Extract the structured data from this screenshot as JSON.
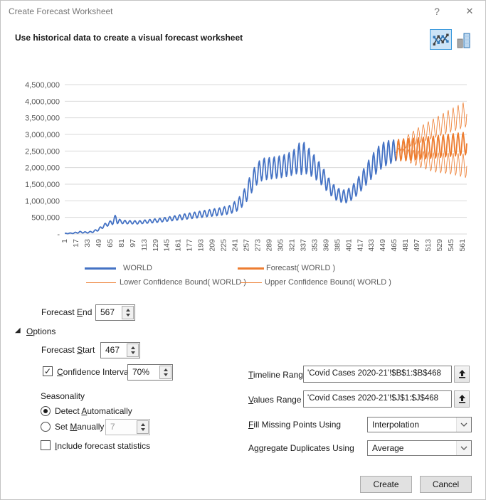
{
  "window": {
    "title": "Create Forecast Worksheet",
    "help_glyph": "?",
    "close_glyph": "✕"
  },
  "header": {
    "subtitle": "Use historical data to create a visual forecast worksheet",
    "chart_type_selected": "line"
  },
  "chart_data": {
    "type": "line",
    "title": "",
    "xlabel": "",
    "ylabel": "",
    "xlim": [
      1,
      567
    ],
    "ylim": [
      0,
      4500000
    ],
    "grid": true,
    "grid_color": "#d9d9d9",
    "tick_color": "#595959",
    "legend_position": "bottom",
    "seasonality_period": 7,
    "x_ticks": [
      1,
      17,
      33,
      49,
      65,
      81,
      97,
      113,
      129,
      145,
      161,
      177,
      193,
      209,
      225,
      241,
      257,
      273,
      289,
      305,
      321,
      337,
      353,
      369,
      385,
      401,
      417,
      433,
      449,
      465,
      481,
      497,
      513,
      529,
      545,
      561
    ],
    "y_ticks": [
      {
        "v": 0,
        "label": "-"
      },
      {
        "v": 500000,
        "label": "500,000"
      },
      {
        "v": 1000000,
        "label": "1,000,000"
      },
      {
        "v": 1500000,
        "label": "1,500,000"
      },
      {
        "v": 2000000,
        "label": "2,000,000"
      },
      {
        "v": 2500000,
        "label": "2,500,000"
      },
      {
        "v": 3000000,
        "label": "3,000,000"
      },
      {
        "v": 3500000,
        "label": "3,500,000"
      },
      {
        "v": 4000000,
        "label": "4,000,000"
      },
      {
        "v": 4500000,
        "label": "4,500,000"
      }
    ],
    "series": [
      {
        "name": "WORLD",
        "color": "#4472C4",
        "width": 1.8,
        "swatch_h": 3,
        "z": 4,
        "knots": [
          [
            1,
            15000,
            8000
          ],
          [
            12,
            25000,
            12000
          ],
          [
            22,
            55000,
            25000
          ],
          [
            33,
            45000,
            18000
          ],
          [
            41,
            70000,
            25000
          ],
          [
            49,
            140000,
            40000
          ],
          [
            57,
            260000,
            55000
          ],
          [
            65,
            330000,
            65000
          ],
          [
            73,
            450000,
            140000
          ],
          [
            79,
            370000,
            60000
          ],
          [
            89,
            355000,
            50000
          ],
          [
            105,
            350000,
            50000
          ],
          [
            121,
            385000,
            55000
          ],
          [
            137,
            420000,
            60000
          ],
          [
            153,
            470000,
            70000
          ],
          [
            169,
            520000,
            85000
          ],
          [
            185,
            570000,
            95000
          ],
          [
            201,
            620000,
            105000
          ],
          [
            217,
            665000,
            115000
          ],
          [
            233,
            730000,
            130000
          ],
          [
            245,
            880000,
            180000
          ],
          [
            255,
            1150000,
            250000
          ],
          [
            263,
            1500000,
            300000
          ],
          [
            271,
            1800000,
            330000
          ],
          [
            279,
            1950000,
            340000
          ],
          [
            291,
            1980000,
            330000
          ],
          [
            303,
            2020000,
            340000
          ],
          [
            315,
            2080000,
            350000
          ],
          [
            327,
            2200000,
            400000
          ],
          [
            334,
            2320000,
            540000
          ],
          [
            341,
            2250000,
            450000
          ],
          [
            349,
            2100000,
            380000
          ],
          [
            357,
            1920000,
            330000
          ],
          [
            365,
            1700000,
            290000
          ],
          [
            373,
            1450000,
            240000
          ],
          [
            381,
            1250000,
            210000
          ],
          [
            389,
            1150000,
            195000
          ],
          [
            397,
            1130000,
            195000
          ],
          [
            405,
            1230000,
            210000
          ],
          [
            413,
            1420000,
            250000
          ],
          [
            421,
            1650000,
            290000
          ],
          [
            429,
            1900000,
            330000
          ],
          [
            437,
            2120000,
            370000
          ],
          [
            445,
            2320000,
            390000
          ],
          [
            453,
            2430000,
            380000
          ],
          [
            461,
            2480000,
            350000
          ],
          [
            467,
            2520000,
            330000
          ]
        ]
      },
      {
        "name": "Forecast( WORLD )",
        "color": "#ED7D31",
        "width": 1.8,
        "swatch_h": 3,
        "z": 3,
        "knots": [
          [
            467,
            2520000,
            330000
          ],
          [
            492,
            2560000,
            335000
          ],
          [
            517,
            2610000,
            340000
          ],
          [
            542,
            2670000,
            345000
          ],
          [
            567,
            2730000,
            350000
          ]
        ]
      },
      {
        "name": "Lower Confidence Bound( WORLD )",
        "color": "#ED7D31",
        "width": 0.8,
        "swatch_h": 1,
        "z": 1,
        "knots": [
          [
            467,
            2500000,
            100000
          ],
          [
            480,
            2380000,
            180000
          ],
          [
            500,
            2260000,
            250000
          ],
          [
            520,
            2160000,
            300000
          ],
          [
            545,
            2120000,
            330000
          ],
          [
            567,
            2050000,
            370000
          ]
        ]
      },
      {
        "name": "Upper Confidence Bound( WORLD )",
        "color": "#ED7D31",
        "width": 0.8,
        "swatch_h": 1,
        "z": 2,
        "knots": [
          [
            467,
            2540000,
            100000
          ],
          [
            480,
            2750000,
            180000
          ],
          [
            500,
            2980000,
            250000
          ],
          [
            520,
            3180000,
            300000
          ],
          [
            545,
            3420000,
            360000
          ],
          [
            567,
            3620000,
            400000
          ]
        ]
      }
    ]
  },
  "form": {
    "forecast_end": {
      "label": {
        "pre": "Forecast ",
        "key": "E",
        "post": "nd"
      },
      "value": "567"
    },
    "options": {
      "label": {
        "pre": "",
        "key": "O",
        "post": "ptions"
      },
      "marker": "◢",
      "expanded": true
    },
    "forecast_start": {
      "label": {
        "pre": "Forecast ",
        "key": "S",
        "post": "tart"
      },
      "value": "467"
    },
    "confidence_interval": {
      "label": {
        "pre": "",
        "key": "C",
        "post": "onfidence Interval"
      },
      "checked": true,
      "value": "70%"
    },
    "seasonality": {
      "label": "Seasonality",
      "detect_auto": {
        "label": {
          "pre": "Detect ",
          "key": "A",
          "post": "utomatically"
        },
        "selected": true
      },
      "set_manually": {
        "label": {
          "pre": "Set ",
          "key": "M",
          "post": "anually"
        },
        "selected": false,
        "value": "7",
        "enabled": false
      }
    },
    "include_stats": {
      "label": {
        "pre": "",
        "key": "I",
        "post": "nclude forecast statistics"
      },
      "checked": false
    },
    "timeline_range": {
      "label": {
        "pre": "",
        "key": "T",
        "post": "imeline Range"
      },
      "value": "'Covid Cases 2020-21'!$B$1:$B$468"
    },
    "values_range": {
      "label": {
        "pre": "",
        "key": "V",
        "post": "alues Range"
      },
      "value": "'Covid Cases 2020-21'!$J$1:$J$468"
    },
    "fill_missing": {
      "label": {
        "pre": "",
        "key": "F",
        "post": "ill Missing Points Using"
      },
      "value": "Interpolation"
    },
    "aggregate": {
      "label": {
        "pre": "A",
        "key": "g",
        "post": "gregate Duplicates Using"
      },
      "value": "Average"
    }
  },
  "footer": {
    "create_label": "Create",
    "cancel_label": "Cancel"
  }
}
